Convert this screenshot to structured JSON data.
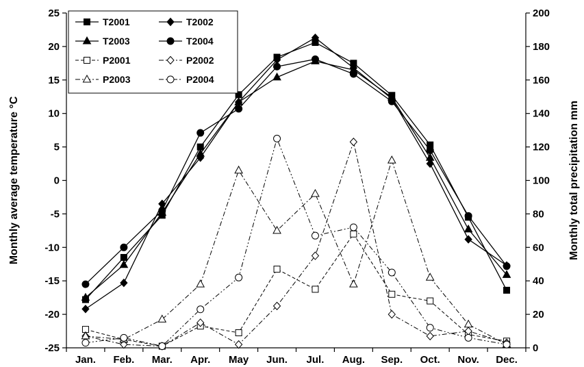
{
  "chart_data": {
    "type": "line",
    "categories": [
      "Jan.",
      "Feb.",
      "Mar.",
      "Apr.",
      "May",
      "Jun.",
      "Jul.",
      "Aug.",
      "Sep.",
      "Oct.",
      "Nov.",
      "Dec."
    ],
    "y_left": {
      "label": "Monthly average temperature °C",
      "range": [
        -25,
        25
      ],
      "ticks": [
        -25,
        -20,
        -15,
        -10,
        -5,
        0,
        5,
        10,
        15,
        20,
        25
      ]
    },
    "y_right": {
      "label": "Monthly total precipitation mm",
      "range": [
        0,
        200
      ],
      "ticks": [
        0,
        20,
        40,
        60,
        80,
        100,
        120,
        140,
        160,
        180,
        200
      ]
    },
    "grid": false,
    "legend": {
      "position": "top-left",
      "columns": 2
    },
    "series": [
      {
        "name": "T2001",
        "axis": "left",
        "marker": "square",
        "filled": true,
        "dash": "solid",
        "values": [
          -17.8,
          -11.5,
          -5.2,
          5.0,
          12.8,
          18.4,
          20.6,
          17.5,
          12.7,
          5.3,
          -5.5,
          -16.4
        ]
      },
      {
        "name": "T2002",
        "axis": "left",
        "marker": "diamond",
        "filled": true,
        "dash": "solid",
        "values": [
          -19.2,
          -15.3,
          -3.5,
          3.4,
          11.7,
          18.0,
          21.3,
          16.8,
          12.2,
          2.5,
          -8.8,
          -12.7
        ]
      },
      {
        "name": "T2003",
        "axis": "left",
        "marker": "triangle",
        "filled": true,
        "dash": "solid",
        "values": [
          -17.5,
          -12.6,
          -4.8,
          4.0,
          11.7,
          15.4,
          17.8,
          16.5,
          12.4,
          3.4,
          -7.3,
          -14.1
        ]
      },
      {
        "name": "T2004",
        "axis": "left",
        "marker": "circle",
        "filled": true,
        "dash": "solid",
        "values": [
          -15.5,
          -10.0,
          -4.5,
          7.1,
          10.7,
          17.0,
          18.1,
          15.9,
          11.8,
          4.5,
          -5.3,
          -12.8
        ]
      },
      {
        "name": "P2001",
        "axis": "right",
        "marker": "square",
        "filled": false,
        "dash": "dash",
        "values": [
          11,
          5,
          1,
          13,
          9,
          47,
          35,
          68,
          32,
          28,
          8,
          4
        ]
      },
      {
        "name": "P2002",
        "axis": "right",
        "marker": "diamond",
        "filled": false,
        "dash": "dashdot",
        "values": [
          7,
          2,
          1,
          15,
          2,
          25,
          55,
          123,
          20,
          7,
          10,
          3
        ]
      },
      {
        "name": "P2003",
        "axis": "right",
        "marker": "triangle",
        "filled": false,
        "dash": "dashdot",
        "values": [
          7,
          5,
          17,
          38,
          106,
          70,
          92,
          38,
          112,
          42,
          14,
          2
        ]
      },
      {
        "name": "P2004",
        "axis": "right",
        "marker": "circle",
        "filled": false,
        "dash": "dashdotdot",
        "values": [
          3,
          6,
          1,
          23,
          42,
          125,
          67,
          72,
          45,
          12,
          6,
          2
        ]
      }
    ]
  }
}
